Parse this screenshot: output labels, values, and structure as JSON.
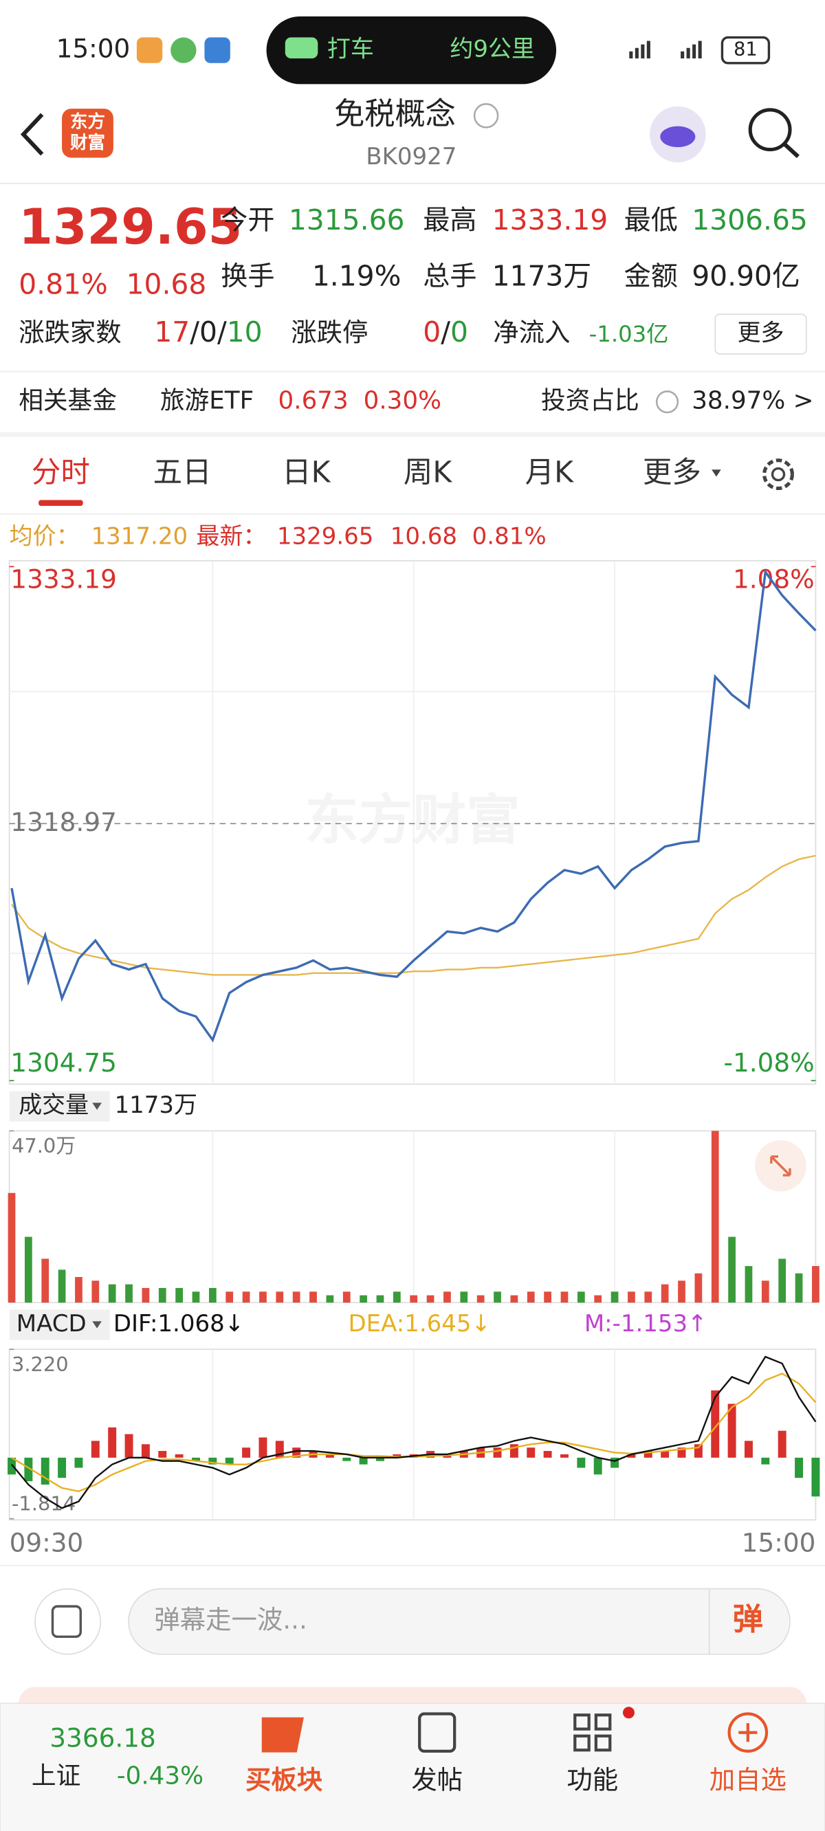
{
  "status_bar": {
    "time": "15:00",
    "ride": "打车",
    "distance": "约9公里",
    "battery": "81"
  },
  "header": {
    "logo": [
      "东方",
      "财富"
    ],
    "title": "免税概念",
    "code": "BK0927"
  },
  "quote": {
    "price": "1329.65",
    "change_pct": "0.81%",
    "change": "10.68",
    "stats": [
      {
        "label": "今开",
        "value": "1315.66"
      },
      {
        "label": "最高",
        "value": "1333.19"
      },
      {
        "label": "最低",
        "value": "1306.65"
      },
      {
        "label": "换手",
        "value": "1.19%"
      },
      {
        "label": "总手",
        "value": "1173万"
      },
      {
        "label": "金额",
        "value": "90.90亿"
      }
    ],
    "breadth": {
      "label": "涨跌家数",
      "up": "17",
      "separator": "/",
      "flat": "0",
      "down": "10"
    },
    "limit": {
      "label": "涨跌停",
      "up": "0",
      "down": "0"
    },
    "inflow": {
      "label": "净流入",
      "value": "-1.03亿"
    },
    "more": "更多"
  },
  "fund": {
    "label": "相关基金",
    "name": "旅游ETF",
    "price": "0.673",
    "pct": "0.30%",
    "ratio_label": "投资占比",
    "ratio": "38.97% >"
  },
  "tabs": [
    "分时",
    "五日",
    "日K",
    "周K",
    "月K",
    "更多"
  ],
  "info": {
    "avg_label": "均价：",
    "avg": "1317.20",
    "last_label": "最新：",
    "last": "1329.65",
    "change": "10.68",
    "pct": "0.81%"
  },
  "watermark": "东方财富",
  "chart_data": [
    {
      "type": "line",
      "ylim": [
        1304.75,
        1333.19
      ],
      "yticks": [
        1304.75,
        1318.97,
        1333.19
      ],
      "y2lim": [
        -1.08,
        1.08
      ],
      "y2ticks": [
        {
          "value": -1.08,
          "label": "-1.08%"
        },
        {
          "value": 1.08,
          "label": "1.08%"
        }
      ],
      "series": [
        {
          "color": "#3d6bb3",
          "values": [
            1315.4,
            1310.24,
            1312.8,
            1309.3,
            1311.5,
            1312.5,
            1311.2,
            1310.9,
            1311.2,
            1309.3,
            1308.6,
            1308.3,
            1307.0,
            1309.6,
            1310.2,
            1310.6,
            1310.8,
            1311.0,
            1311.4,
            1310.9,
            1311.0,
            1310.8,
            1310.6,
            1310.5,
            1311.4,
            1312.2,
            1313.0,
            1312.9,
            1313.2,
            1313.0,
            1313.5,
            1314.8,
            1315.7,
            1316.4,
            1316.2,
            1316.6,
            1315.4,
            1316.4,
            1317.0,
            1317.7,
            1317.9,
            1318.0,
            1327.1,
            1326.1,
            1325.4,
            1332.9,
            1331.6,
            1330.6,
            1329.65
          ]
        },
        {
          "color": "#e8b64a",
          "values": [
            1314.5,
            1313.2,
            1312.6,
            1312.1,
            1311.8,
            1311.6,
            1311.4,
            1311.2,
            1311.0,
            1310.9,
            1310.8,
            1310.7,
            1310.6,
            1310.6,
            1310.6,
            1310.6,
            1310.6,
            1310.6,
            1310.7,
            1310.7,
            1310.7,
            1310.7,
            1310.7,
            1310.7,
            1310.8,
            1310.8,
            1310.9,
            1310.9,
            1311.0,
            1311.0,
            1311.1,
            1311.2,
            1311.3,
            1311.4,
            1311.5,
            1311.6,
            1311.7,
            1311.8,
            1312.0,
            1312.2,
            1312.4,
            1312.6,
            1314.0,
            1314.8,
            1315.3,
            1316.0,
            1316.6,
            1317.0,
            1317.2
          ]
        }
      ],
      "xticks": [
        "09:30",
        "15:00"
      ]
    },
    {
      "type": "bar",
      "title": "成交量",
      "total": "1173万",
      "ylim": [
        0,
        47.0
      ],
      "yticks": [
        {
          "value": 47,
          "label": "47.0万"
        }
      ],
      "values": [
        30,
        18,
        12,
        9,
        7,
        6,
        5,
        5,
        4,
        4,
        4,
        3,
        4,
        3,
        3,
        3,
        3,
        3,
        3,
        2,
        3,
        2,
        2,
        3,
        2,
        2,
        3,
        3,
        2,
        3,
        2,
        3,
        3,
        3,
        3,
        2,
        3,
        3,
        3,
        5,
        6,
        8,
        47,
        18,
        10,
        6,
        12,
        8,
        10
      ],
      "colors": [
        "#e24c3f",
        "#3a9b3a",
        "#e24c3f",
        "#3a9b3a",
        "#e24c3f",
        "#e24c3f",
        "#3a9b3a",
        "#3a9b3a",
        "#e24c3f",
        "#3a9b3a",
        "#3a9b3a",
        "#3a9b3a",
        "#3a9b3a",
        "#e24c3f",
        "#e24c3f",
        "#e24c3f",
        "#e24c3f",
        "#e24c3f",
        "#e24c3f",
        "#3a9b3a",
        "#e24c3f",
        "#3a9b3a",
        "#3a9b3a",
        "#3a9b3a",
        "#e24c3f",
        "#e24c3f",
        "#e24c3f",
        "#3a9b3a",
        "#e24c3f",
        "#3a9b3a",
        "#e24c3f",
        "#e24c3f",
        "#e24c3f",
        "#e24c3f",
        "#3a9b3a",
        "#e24c3f",
        "#3a9b3a",
        "#e24c3f",
        "#e24c3f",
        "#e24c3f",
        "#e24c3f",
        "#e24c3f",
        "#e24c3f",
        "#3a9b3a",
        "#3a9b3a",
        "#e24c3f",
        "#3a9b3a",
        "#3a9b3a",
        "#e24c3f"
      ]
    },
    {
      "type": "macd",
      "title": "MACD",
      "ylim": [
        -1.814,
        3.22
      ],
      "yticks": [
        {
          "value": -1.814,
          "label": "-1.814"
        },
        {
          "value": 3.22,
          "label": "3.220"
        }
      ],
      "series": [
        {
          "name": "DIF:1.068↓",
          "color": "#111111",
          "values": [
            -0.2,
            -0.8,
            -1.2,
            -1.5,
            -1.3,
            -0.6,
            -0.2,
            0,
            0,
            -0.1,
            -0.1,
            -0.2,
            -0.3,
            -0.5,
            -0.3,
            0,
            0.1,
            0.2,
            0.2,
            0.15,
            0.1,
            0,
            0,
            0,
            0.05,
            0.1,
            0.1,
            0.2,
            0.3,
            0.35,
            0.5,
            0.6,
            0.5,
            0.4,
            0.2,
            0,
            -0.1,
            0.1,
            0.2,
            0.3,
            0.4,
            0.5,
            1.8,
            2.4,
            2.2,
            3.0,
            2.8,
            1.8,
            1.068
          ]
        },
        {
          "name": "DEA:1.645↓",
          "color": "#e8b020",
          "values": [
            0,
            -0.3,
            -0.6,
            -0.9,
            -1.0,
            -0.8,
            -0.5,
            -0.3,
            -0.1,
            -0.05,
            -0.05,
            -0.1,
            -0.15,
            -0.2,
            -0.2,
            -0.1,
            0,
            0.05,
            0.1,
            0.1,
            0.1,
            0.05,
            0.05,
            0.03,
            0.03,
            0.05,
            0.07,
            0.1,
            0.15,
            0.2,
            0.3,
            0.4,
            0.45,
            0.45,
            0.35,
            0.25,
            0.15,
            0.12,
            0.15,
            0.2,
            0.25,
            0.3,
            0.9,
            1.5,
            1.8,
            2.3,
            2.5,
            2.2,
            1.645
          ]
        },
        {
          "name": "M:-1.153↑",
          "color": "#c040d0",
          "values": [
            -0.5,
            -0.7,
            -0.8,
            -0.6,
            -0.3,
            0.5,
            0.9,
            0.7,
            0.4,
            0.2,
            0.1,
            -0.1,
            -0.2,
            -0.2,
            0.3,
            0.6,
            0.5,
            0.3,
            0.2,
            0.1,
            -0.1,
            -0.2,
            -0.1,
            0.1,
            0.1,
            0.2,
            0.1,
            0.2,
            0.3,
            0.3,
            0.4,
            0.3,
            0.2,
            0.1,
            -0.3,
            -0.5,
            -0.3,
            0.1,
            0.2,
            0.2,
            0.3,
            0.4,
            2.0,
            1.6,
            0.5,
            -0.2,
            0.8,
            -0.6,
            -1.153
          ]
        }
      ]
    }
  ],
  "comment": {
    "placeholder": "弹幕走一波...",
    "button": "弹"
  },
  "nav": {
    "index_value": "3366.18",
    "index_name": "上证",
    "index_pct": "-0.43%",
    "items": [
      "买板块",
      "发帖",
      "功能",
      "加自选"
    ]
  }
}
